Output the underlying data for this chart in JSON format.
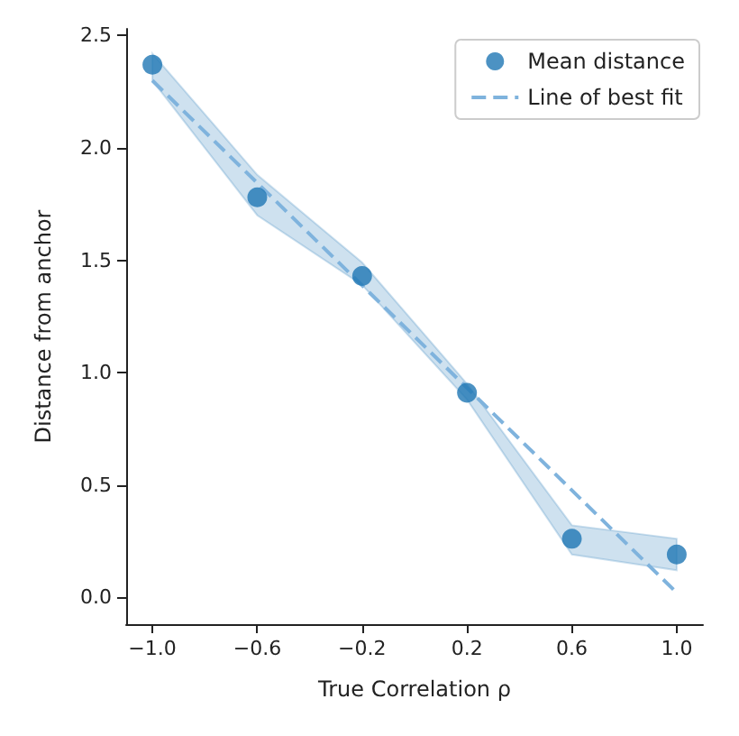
{
  "chart_data": {
    "type": "scatter",
    "xlabel": "True Correlation ρ",
    "ylabel": "Distance from anchor",
    "x": [
      -1.0,
      -0.6,
      -0.2,
      0.2,
      0.6,
      1.0
    ],
    "series": [
      {
        "name": "Mean distance",
        "color": "#1f77b4",
        "values": [
          2.37,
          1.78,
          1.43,
          0.91,
          0.26,
          0.19
        ],
        "lower": [
          2.3,
          1.7,
          1.39,
          0.88,
          0.19,
          0.12
        ],
        "upper": [
          2.42,
          1.88,
          1.49,
          0.95,
          0.32,
          0.26
        ]
      },
      {
        "name": "Line of best fit",
        "type": "line",
        "color": "#7fb3dd",
        "line_style": "dashed",
        "x": [
          -1.0,
          1.0
        ],
        "values": [
          2.3,
          0.02
        ]
      }
    ],
    "xlim": [
      -1.1,
      1.1
    ],
    "ylim": [
      -0.12,
      2.53
    ],
    "xticks": [
      {
        "value": -1.0,
        "label": "−1.0"
      },
      {
        "value": -0.6,
        "label": "−0.6"
      },
      {
        "value": -0.2,
        "label": "−0.2"
      },
      {
        "value": 0.2,
        "label": "0.2"
      },
      {
        "value": 0.6,
        "label": "0.6"
      },
      {
        "value": 1.0,
        "label": "1.0"
      }
    ],
    "yticks": [
      {
        "value": 0,
        "label": "0.0"
      },
      {
        "value": 0.5,
        "label": "0.5"
      },
      {
        "value": 1.0,
        "label": "1.0"
      },
      {
        "value": 1.5,
        "label": "1.5"
      },
      {
        "value": 2.0,
        "label": "2.0"
      },
      {
        "value": 2.5,
        "label": "2.5"
      }
    ],
    "grid": false,
    "legend": "top right"
  }
}
